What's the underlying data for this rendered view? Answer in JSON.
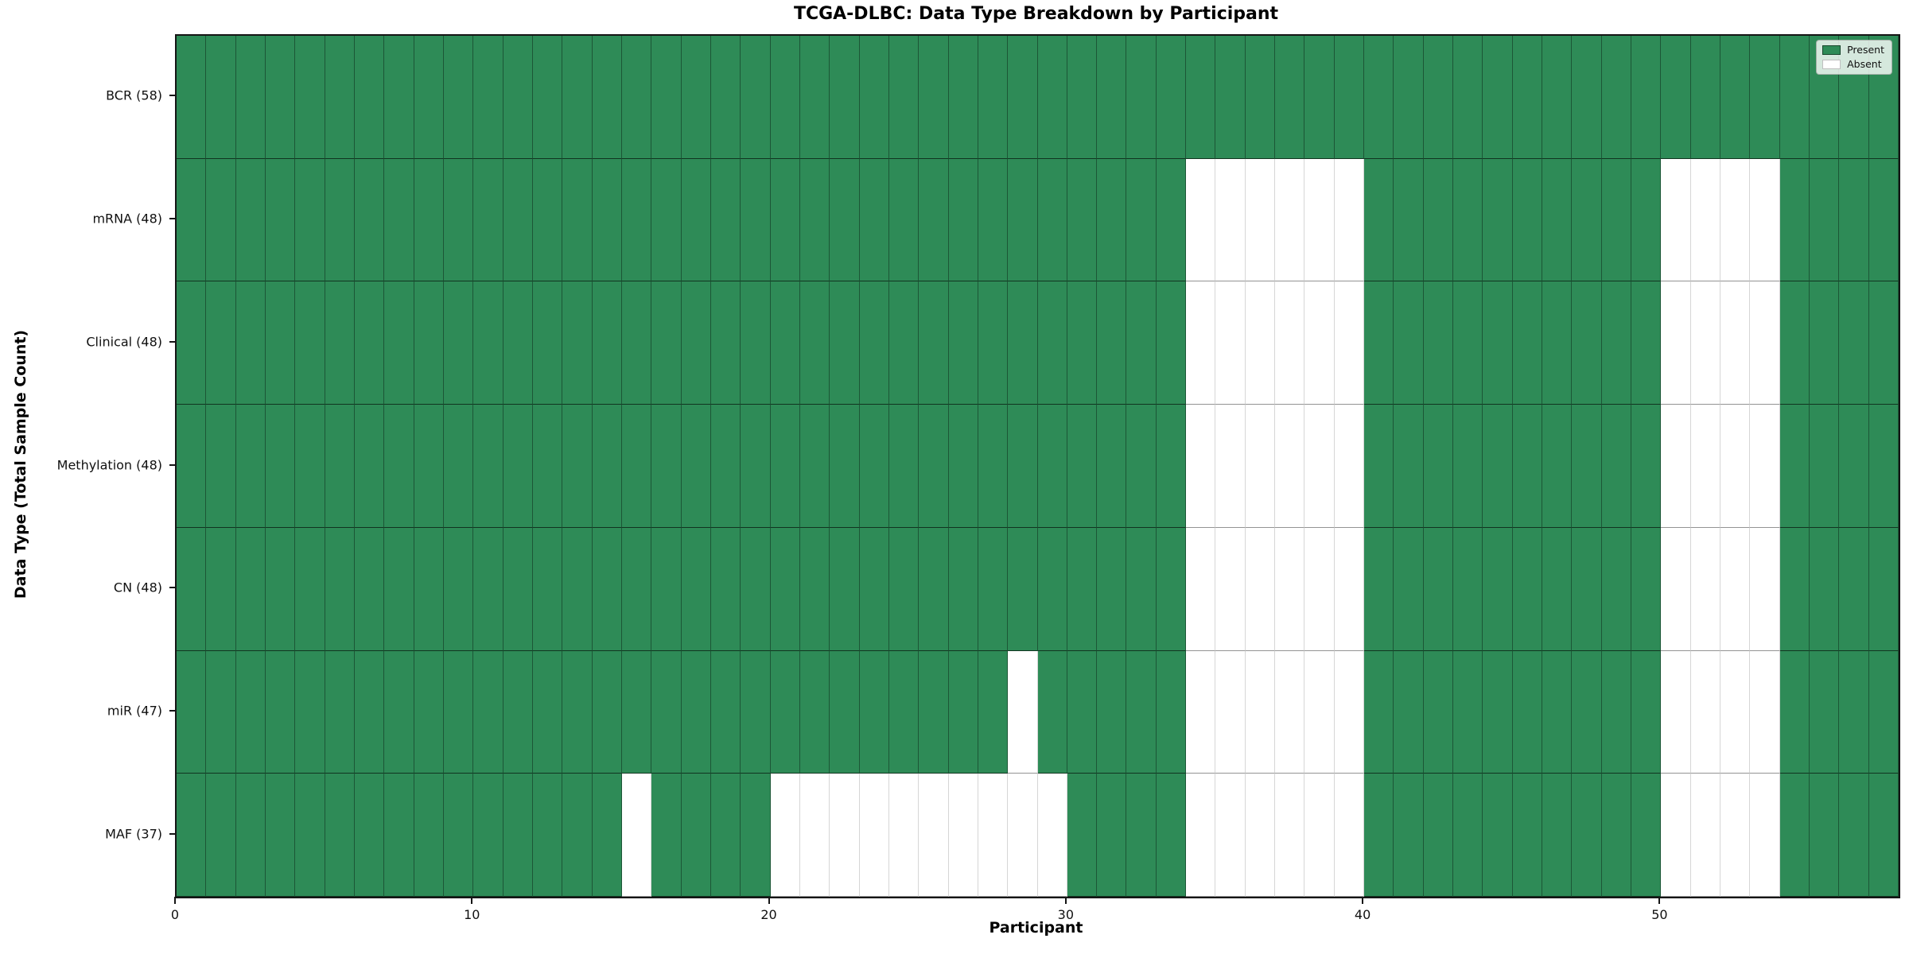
{
  "chart_data": {
    "type": "heatmap",
    "title": "TCGA-DLBC: Data Type Breakdown by Participant",
    "xlabel": "Participant",
    "ylabel": "Data Type (Total Sample Count)",
    "n_participants": 58,
    "xlim": [
      0,
      58
    ],
    "x_ticks": [
      0,
      10,
      20,
      30,
      40,
      50
    ],
    "grid": "cell-borders-on",
    "legend_position": "upper-right",
    "colors": {
      "present": "#2e8b57",
      "absent": "#ffffff"
    },
    "legend": [
      {
        "key": "present",
        "label": "Present",
        "color": "#2e8b57"
      },
      {
        "key": "absent",
        "label": "Absent",
        "color": "#ffffff"
      }
    ],
    "rows": [
      {
        "label": "BCR (58)",
        "data_type": "BCR",
        "total": 58,
        "absent_participants": []
      },
      {
        "label": "mRNA (48)",
        "data_type": "mRNA",
        "total": 48,
        "absent_participants": [
          34,
          35,
          36,
          37,
          38,
          39,
          50,
          51,
          52,
          53
        ]
      },
      {
        "label": "Clinical (48)",
        "data_type": "Clinical",
        "total": 48,
        "absent_participants": [
          34,
          35,
          36,
          37,
          38,
          39,
          50,
          51,
          52,
          53
        ]
      },
      {
        "label": "Methylation (48)",
        "data_type": "Methylation",
        "total": 48,
        "absent_participants": [
          34,
          35,
          36,
          37,
          38,
          39,
          50,
          51,
          52,
          53
        ]
      },
      {
        "label": "CN (48)",
        "data_type": "CN",
        "total": 48,
        "absent_participants": [
          34,
          35,
          36,
          37,
          38,
          39,
          50,
          51,
          52,
          53
        ]
      },
      {
        "label": "miR (47)",
        "data_type": "miR",
        "total": 47,
        "absent_participants": [
          28,
          34,
          35,
          36,
          37,
          38,
          39,
          50,
          51,
          52,
          53
        ]
      },
      {
        "label": "MAF (37)",
        "data_type": "MAF",
        "total": 37,
        "absent_participants": [
          15,
          20,
          21,
          22,
          23,
          24,
          25,
          26,
          27,
          28,
          29,
          34,
          35,
          36,
          37,
          38,
          39,
          50,
          51,
          52,
          53
        ]
      }
    ]
  }
}
